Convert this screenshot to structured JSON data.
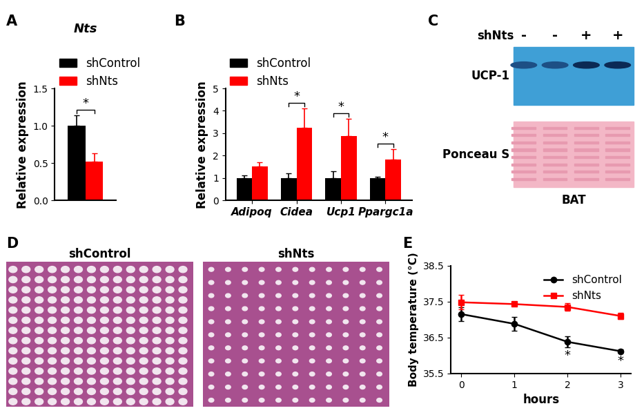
{
  "chart_data": [
    {
      "panel": "A",
      "type": "bar",
      "title": "Nts",
      "y_label": "Relative expression",
      "categories": [
        null
      ],
      "series": [
        {
          "name": "shControl",
          "color": "#000000",
          "values": [
            1.0
          ],
          "errors": [
            0.14
          ]
        },
        {
          "name": "shNts",
          "color": "#ff0000",
          "values": [
            0.52
          ],
          "errors": [
            0.11
          ]
        }
      ],
      "ylim": [
        0,
        1.5
      ],
      "yticks": [
        {
          "value": 0,
          "label": "0.0"
        },
        {
          "value": 0.5,
          "label": "0.5"
        },
        {
          "value": 1.0,
          "label": "1.0"
        },
        {
          "value": 1.5,
          "label": "1.5"
        }
      ],
      "legend": "upper left",
      "annotations": [
        {
          "text": "*",
          "category": 0
        }
      ]
    },
    {
      "panel": "B",
      "type": "bar",
      "y_label": "Relative expression",
      "categories": [
        "Adipoq",
        "Cidea",
        "Ucp1",
        "Ppargc1a"
      ],
      "series": [
        {
          "name": "shControl",
          "color": "#000000",
          "values": [
            1.0,
            1.0,
            1.0,
            1.0
          ],
          "errors": [
            0.12,
            0.22,
            0.3,
            0.05
          ]
        },
        {
          "name": "shNts",
          "color": "#ff0000",
          "values": [
            1.52,
            3.25,
            2.88,
            1.83
          ],
          "errors": [
            0.17,
            0.85,
            0.75,
            0.45
          ]
        }
      ],
      "ylim": [
        0,
        5
      ],
      "yticks": [
        0,
        1,
        2,
        3,
        4,
        5
      ],
      "legend": "upper left",
      "annotations": [
        {
          "text": "*",
          "category": 1
        },
        {
          "text": "*",
          "category": 2
        },
        {
          "text": "*",
          "category": 3
        }
      ]
    },
    {
      "panel": "E",
      "type": "line",
      "x_label": "hours",
      "y_label": "Body temperature (°C)",
      "x": [
        0,
        1,
        2,
        3
      ],
      "series": [
        {
          "name": "shControl",
          "color": "#000000",
          "marker": "circle",
          "values": [
            37.15,
            36.88,
            36.38,
            36.12
          ],
          "errors": [
            0.2,
            0.2,
            0.15,
            0.05
          ]
        },
        {
          "name": "shNts",
          "color": "#ff0000",
          "marker": "square",
          "values": [
            37.48,
            37.43,
            37.35,
            37.1
          ],
          "errors": [
            0.2,
            0.05,
            0.1,
            0.08
          ]
        }
      ],
      "xlim": [
        -0.2,
        3.2
      ],
      "xticks": [
        0,
        1,
        2,
        3
      ],
      "ylim": [
        35.5,
        38.5
      ],
      "yticks": [
        35.5,
        36.5,
        37.5,
        38.5
      ],
      "legend": "upper right",
      "annotations": [
        {
          "text": "*",
          "x": 2,
          "series": "shControl"
        },
        {
          "text": "*",
          "x": 3,
          "series": "shControl"
        }
      ]
    }
  ],
  "blot": {
    "panel": "C",
    "lanes_label": "shNts",
    "lanes": [
      "-",
      "-",
      "+",
      "+"
    ],
    "rows": [
      "UCP-1",
      "Ponceau S"
    ],
    "caption": "BAT"
  },
  "histology": {
    "panel": "D",
    "images": [
      "shControl",
      "shNts"
    ]
  }
}
